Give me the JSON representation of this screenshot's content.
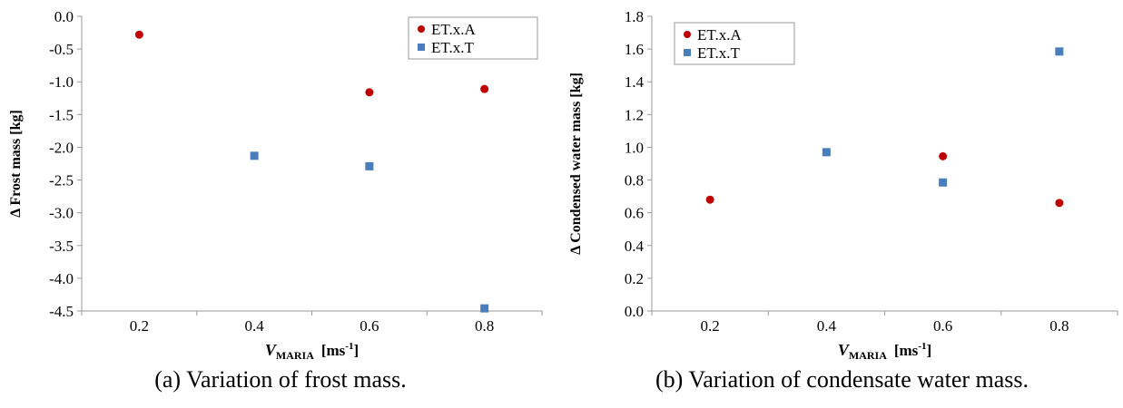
{
  "chart_data": [
    {
      "id": "a",
      "type": "scatter",
      "caption": "(a) Variation of frost mass.",
      "ylabel": "Δ Frost mass  [kg]",
      "xlabel_main": "V",
      "xlabel_sub": "MARIA",
      "xlabel_unit": "[ms",
      "xlabel_unit_sup": "-1",
      "xlabel_unit_close": "]",
      "categories": [
        "0.2",
        "0.4",
        "0.6",
        "0.8"
      ],
      "ylim": [
        -4.5,
        0.0
      ],
      "yticks": [
        "0.0",
        "-0.5",
        "-1.0",
        "-1.5",
        "-2.0",
        "-2.5",
        "-3.0",
        "-3.5",
        "-4.0",
        "-4.5"
      ],
      "ytick_values": [
        0.0,
        -0.5,
        -1.0,
        -1.5,
        -2.0,
        -2.5,
        -3.0,
        -3.5,
        -4.0,
        -4.5
      ],
      "legend_position": "top-right",
      "grid": false,
      "series": [
        {
          "name": "ET.x.A",
          "marker": "circle",
          "color": "#c00000",
          "points": [
            {
              "x": "0.2",
              "y": -0.28
            },
            {
              "x": "0.6",
              "y": -1.16
            },
            {
              "x": "0.8",
              "y": -1.11
            }
          ]
        },
        {
          "name": "ET.x.T",
          "marker": "square",
          "color": "#4a7ebb",
          "points": [
            {
              "x": "0.4",
              "y": -2.13
            },
            {
              "x": "0.6",
              "y": -2.29
            },
            {
              "x": "0.8",
              "y": -4.46
            }
          ]
        }
      ]
    },
    {
      "id": "b",
      "type": "scatter",
      "caption": "(b) Variation of condensate water mass.",
      "ylabel": "Δ Condensed water mass  [kg]",
      "xlabel_main": "V",
      "xlabel_sub": "MARIA",
      "xlabel_unit": "[ms",
      "xlabel_unit_sup": "-1",
      "xlabel_unit_close": "]",
      "categories": [
        "0.2",
        "0.4",
        "0.6",
        "0.8"
      ],
      "ylim": [
        0.0,
        1.8
      ],
      "yticks": [
        "0.0",
        "0.2",
        "0.4",
        "0.6",
        "0.8",
        "1.0",
        "1.2",
        "1.4",
        "1.6",
        "1.8"
      ],
      "ytick_values": [
        0.0,
        0.2,
        0.4,
        0.6,
        0.8,
        1.0,
        1.2,
        1.4,
        1.6,
        1.8
      ],
      "legend_position": "top-left",
      "grid": false,
      "series": [
        {
          "name": "ET.x.A",
          "marker": "circle",
          "color": "#c00000",
          "points": [
            {
              "x": "0.2",
              "y": 0.68
            },
            {
              "x": "0.6",
              "y": 0.945
            },
            {
              "x": "0.8",
              "y": 0.66
            }
          ]
        },
        {
          "name": "ET.x.T",
          "marker": "square",
          "color": "#4a7ebb",
          "points": [
            {
              "x": "0.4",
              "y": 0.97
            },
            {
              "x": "0.6",
              "y": 0.785
            },
            {
              "x": "0.8",
              "y": 1.585
            }
          ]
        }
      ]
    }
  ]
}
